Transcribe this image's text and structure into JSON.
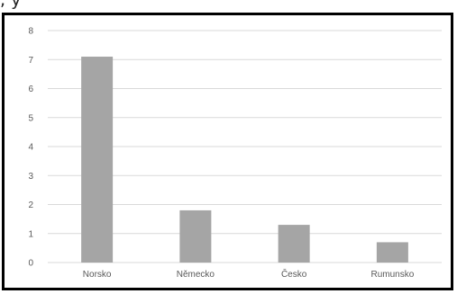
{
  "header_fragment": ",              y",
  "chart_data": {
    "type": "bar",
    "categories": [
      "Norsko",
      "Německo",
      "Česko",
      "Rumunsko"
    ],
    "values": [
      7.1,
      1.8,
      1.3,
      0.7
    ],
    "title": "",
    "xlabel": "",
    "ylabel": "",
    "ylim": [
      0,
      8
    ],
    "yticks": [
      0,
      1,
      2,
      3,
      4,
      5,
      6,
      7,
      8
    ],
    "grid": true,
    "bar_color": "#a5a5a5",
    "grid_color": "#d9d9d9"
  }
}
